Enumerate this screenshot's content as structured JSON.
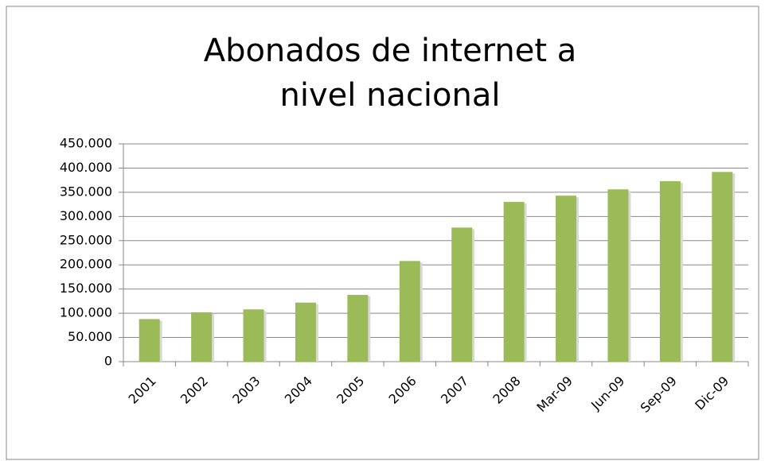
{
  "chart_data": {
    "type": "bar",
    "title": "Abonados de internet a nivel nacional",
    "categories": [
      "2001",
      "2002",
      "2003",
      "2004",
      "2005",
      "2006",
      "2007",
      "2008",
      "Mar-09",
      "Jun-09",
      "Sep-09",
      "Dic-09"
    ],
    "values": [
      88000,
      102000,
      108000,
      122000,
      138000,
      208000,
      277000,
      330000,
      343000,
      356000,
      373000,
      392000
    ],
    "color": "#9bbb59",
    "ylim": [
      0,
      450000
    ],
    "yticks": [
      0,
      {
        "value": 50000,
        "label": "50.000"
      },
      {
        "value": 100000,
        "label": "100.000"
      },
      {
        "value": 150000,
        "label": "150.000"
      },
      {
        "value": 200000,
        "label": "200.000"
      },
      {
        "value": 250000,
        "label": "250.000"
      },
      {
        "value": 300000,
        "label": "300.000"
      },
      {
        "value": 350000,
        "label": "350.000"
      },
      {
        "value": 400000,
        "label": "400.000"
      },
      {
        "value": 450000,
        "label": "450.000"
      }
    ],
    "grid": true
  }
}
